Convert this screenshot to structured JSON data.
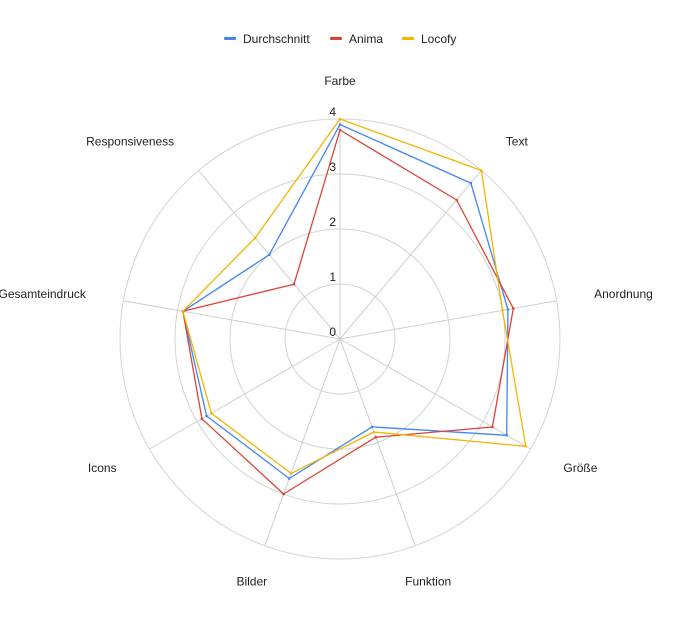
{
  "chart_data": {
    "type": "radar",
    "title": "",
    "axes": [
      "Farbe",
      "Text",
      "Anordnung",
      "Größe",
      "Funktion",
      "Bilder",
      "Icons",
      "Gesamteindruck",
      "Responsiveness"
    ],
    "rlim": [
      0,
      4
    ],
    "ticks": [
      "0",
      "1",
      "2",
      "3",
      "4"
    ],
    "grid": true,
    "legend_position": "top",
    "series": [
      {
        "name": "Durchschnitt",
        "color": "#4285f4",
        "values": [
          3.9,
          3.7,
          3.1,
          3.5,
          1.7,
          2.7,
          2.8,
          2.9,
          2.0
        ]
      },
      {
        "name": "Anima",
        "color": "#db4437",
        "values": [
          3.8,
          3.3,
          3.2,
          3.2,
          1.9,
          3.0,
          2.9,
          2.9,
          1.3
        ]
      },
      {
        "name": "Locofy",
        "color": "#f4b400",
        "values": [
          4.0,
          4.0,
          3.0,
          3.9,
          1.8,
          2.6,
          2.7,
          2.9,
          2.4
        ]
      }
    ]
  }
}
